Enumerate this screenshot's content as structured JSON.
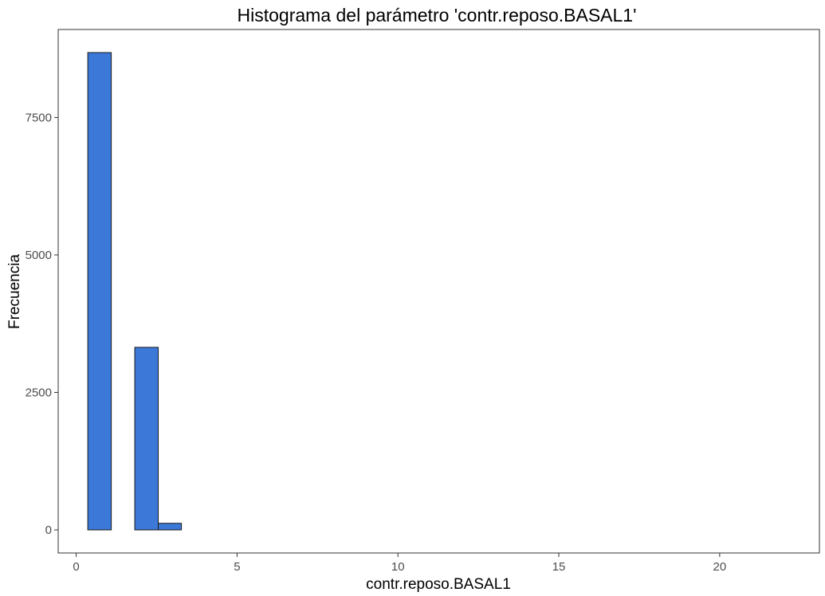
{
  "chart_data": {
    "type": "bar",
    "title": "Histograma del parámetro 'contr.reposo.BASAL1'",
    "xlabel": "contr.reposo.BASAL1",
    "ylabel": "Frecuencia",
    "xlim": [
      -0.56,
      23.1
    ],
    "ylim": [
      -420,
      9100
    ],
    "x_ticks": [
      0,
      5,
      10,
      15,
      20
    ],
    "y_ticks": [
      0,
      2500,
      5000,
      7500
    ],
    "bin_width": 0.728,
    "bins": [
      {
        "x0": 0.36,
        "x1": 1.09,
        "count": 8680
      },
      {
        "x0": 1.09,
        "x1": 1.82,
        "count": 0
      },
      {
        "x0": 1.82,
        "x1": 2.55,
        "count": 3320
      },
      {
        "x0": 2.55,
        "x1": 3.27,
        "count": 120
      },
      {
        "x0": 3.27,
        "x1": 22.1,
        "count": 0
      }
    ],
    "bar_color": "#3c78d8",
    "bar_outline": "#1a1a1a",
    "grid": false,
    "legend": "none"
  }
}
